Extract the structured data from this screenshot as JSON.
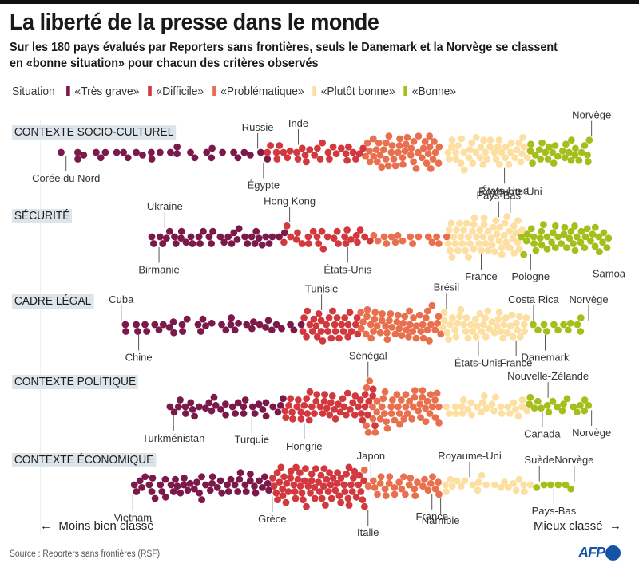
{
  "header": {
    "title": "La liberté de la presse dans le monde",
    "subtitle_line1": "Sur les 180 pays évalués par Reporters sans frontières, seuls le Danemark et la Norvège se classent",
    "subtitle_line2": "en «bonne situation» pour chacun des critères observés"
  },
  "legend": {
    "title": "Situation",
    "items": [
      {
        "key": "tres_grave",
        "label": "«Très grave»",
        "color": "#7b1a4a"
      },
      {
        "key": "difficile",
        "label": "«Difficile»",
        "color": "#d2393f"
      },
      {
        "key": "problematique",
        "label": "«Problématique»",
        "color": "#e8704e"
      },
      {
        "key": "plutot_bonne",
        "label": "«Plutôt bonne»",
        "color": "#fcdfa1"
      },
      {
        "key": "bonne",
        "label": "«Bonne»",
        "color": "#a4bf1c"
      }
    ]
  },
  "axis": {
    "left_label": "Moins bien classé",
    "right_label": "Mieux classé",
    "left_arrow": "←",
    "right_arrow": "→"
  },
  "footer": {
    "source": "Source : Reporters sans frontières (RSF)",
    "logo_text": "AFP"
  },
  "chart_data": {
    "type": "scatter",
    "subtype": "beeswarm",
    "title": "La liberté de la presse dans le monde",
    "x_description": "Classement par critère (score relatif, 0 = moins bien classé, 100 = mieux classé)",
    "xlim": [
      0,
      100
    ],
    "total_countries": 180,
    "categories": [
      "tres_grave",
      "difficile",
      "problematique",
      "plutot_bonne",
      "bonne"
    ],
    "rows": [
      {
        "label": "CONTEXTE SOCIO-CULTUREL",
        "groups": [
          {
            "category": "tres_grave",
            "count": 30,
            "range": [
              4,
              39
            ]
          },
          {
            "category": "difficile",
            "count": 30,
            "range": [
              39,
              56
            ]
          },
          {
            "category": "problematique",
            "count": 48,
            "range": [
              56,
              69
            ]
          },
          {
            "category": "plutot_bonne",
            "count": 44,
            "range": [
              70,
              84
            ]
          },
          {
            "category": "bonne",
            "count": 28,
            "range": [
              84,
              95
            ]
          }
        ],
        "annotations": [
          {
            "country": "Corée du Nord",
            "x": 4.5,
            "side": "below",
            "category": "tres_grave"
          },
          {
            "country": "Russie",
            "x": 37.5,
            "side": "above",
            "category": "tres_grave"
          },
          {
            "country": "Égypte",
            "x": 38.5,
            "side": "below",
            "category": "tres_grave"
          },
          {
            "country": "Inde",
            "x": 44.5,
            "side": "above",
            "category": "difficile"
          },
          {
            "country": "États-Unis",
            "x": 80,
            "side": "below",
            "category": "plutot_bonne"
          },
          {
            "country": "Norvège",
            "x": 95,
            "side": "above",
            "category": "bonne"
          }
        ]
      },
      {
        "label": "SÉCURITÉ",
        "groups": [
          {
            "category": "tres_grave",
            "count": 38,
            "range": [
              19,
              42
            ]
          },
          {
            "category": "difficile",
            "count": 26,
            "range": [
              42,
              57
            ]
          },
          {
            "category": "problematique",
            "count": 16,
            "range": [
              57,
              70
            ]
          },
          {
            "category": "plutot_bonne",
            "count": 56,
            "range": [
              70,
              83
            ]
          },
          {
            "category": "bonne",
            "count": 44,
            "range": [
              83,
              98
            ]
          }
        ],
        "annotations": [
          {
            "country": "Ukraine",
            "x": 21.5,
            "side": "above",
            "category": "tres_grave"
          },
          {
            "country": "Birmanie",
            "x": 20.5,
            "side": "below",
            "category": "tres_grave"
          },
          {
            "country": "Hong Kong",
            "x": 43,
            "side": "above",
            "category": "difficile"
          },
          {
            "country": "États-Unis",
            "x": 53,
            "side": "below",
            "category": "difficile"
          },
          {
            "country": "Pays-Bas",
            "x": 79,
            "side": "above",
            "category": "plutot_bonne"
          },
          {
            "country": "France",
            "x": 76,
            "side": "below",
            "category": "plutot_bonne"
          },
          {
            "country": "Royaume-Uni",
            "x": 81,
            "side": "above",
            "category": "plutot_bonne"
          },
          {
            "country": "Pologne",
            "x": 84.5,
            "side": "below",
            "category": "bonne"
          },
          {
            "country": "Samoa",
            "x": 98,
            "side": "below",
            "category": "bonne"
          }
        ]
      },
      {
        "label": "CADRE LÉGAL",
        "groups": [
          {
            "category": "tres_grave",
            "count": 38,
            "range": [
              14,
              45
            ]
          },
          {
            "category": "difficile",
            "count": 32,
            "range": [
              45,
              55
            ]
          },
          {
            "category": "problematique",
            "count": 50,
            "range": [
              55,
              69
            ]
          },
          {
            "category": "plutot_bonne",
            "count": 48,
            "range": [
              69,
              84
            ]
          },
          {
            "category": "bonne",
            "count": 12,
            "range": [
              85,
              94
            ]
          }
        ],
        "annotations": [
          {
            "country": "Cuba",
            "x": 14,
            "side": "above",
            "category": "tres_grave"
          },
          {
            "country": "Chine",
            "x": 17,
            "side": "below",
            "category": "tres_grave"
          },
          {
            "country": "Tunisie",
            "x": 48.5,
            "side": "above",
            "category": "difficile"
          },
          {
            "country": "Brésil",
            "x": 70,
            "side": "above",
            "category": "plutot_bonne"
          },
          {
            "country": "États-Unis",
            "x": 75.5,
            "side": "below",
            "category": "plutot_bonne"
          },
          {
            "country": "France",
            "x": 82,
            "side": "below",
            "category": "plutot_bonne"
          },
          {
            "country": "Costa Rica",
            "x": 85,
            "side": "above",
            "category": "bonne"
          },
          {
            "country": "Danemark",
            "x": 87,
            "side": "below",
            "category": "bonne"
          },
          {
            "country": "Norvège",
            "x": 94.5,
            "side": "above",
            "category": "bonne"
          }
        ]
      },
      {
        "label": "CONTEXTE POLITIQUE",
        "groups": [
          {
            "category": "tres_grave",
            "count": 34,
            "range": [
              22,
              42
            ]
          },
          {
            "category": "difficile",
            "count": 50,
            "range": [
              42,
              58
            ]
          },
          {
            "category": "problematique",
            "count": 50,
            "range": [
              56,
              69
            ]
          },
          {
            "category": "plutot_bonne",
            "count": 28,
            "range": [
              70,
              84
            ]
          },
          {
            "category": "bonne",
            "count": 18,
            "range": [
              84,
              95
            ]
          }
        ],
        "annotations": [
          {
            "country": "Turkménistan",
            "x": 23,
            "side": "below",
            "category": "tres_grave"
          },
          {
            "country": "Turquie",
            "x": 36.5,
            "side": "below",
            "category": "tres_grave"
          },
          {
            "country": "Hongrie",
            "x": 45.5,
            "side": "below",
            "category": "difficile"
          },
          {
            "country": "Sénégal",
            "x": 56.5,
            "side": "above",
            "category": "problematique"
          },
          {
            "country": "Nouvelle-Zélande",
            "x": 87.5,
            "side": "above",
            "category": "bonne"
          },
          {
            "country": "Canada",
            "x": 86.5,
            "side": "below",
            "category": "bonne"
          },
          {
            "country": "Norvège",
            "x": 95,
            "side": "below",
            "category": "bonne"
          }
        ]
      },
      {
        "label": "CONTEXTE ÉCONOMIQUE",
        "groups": [
          {
            "category": "tres_grave",
            "count": 52,
            "range": [
              16,
              40
            ]
          },
          {
            "category": "difficile",
            "count": 70,
            "range": [
              40,
              56
            ]
          },
          {
            "category": "problematique",
            "count": 30,
            "range": [
              56,
              69
            ]
          },
          {
            "category": "plutot_bonne",
            "count": 22,
            "range": [
              69,
              85
            ]
          },
          {
            "category": "bonne",
            "count": 6,
            "range": [
              85,
              92
            ]
          }
        ],
        "annotations": [
          {
            "country": "Vietnam",
            "x": 16,
            "side": "below",
            "category": "tres_grave"
          },
          {
            "country": "Grèce",
            "x": 40,
            "side": "below",
            "category": "difficile"
          },
          {
            "country": "Japon",
            "x": 57,
            "side": "above",
            "category": "problematique"
          },
          {
            "country": "Italie",
            "x": 56.5,
            "side": "below",
            "category": "problematique"
          },
          {
            "country": "France",
            "x": 67.5,
            "side": "below",
            "category": "problematique"
          },
          {
            "country": "Namibie",
            "x": 69,
            "side": "below",
            "category": "plutot_bonne"
          },
          {
            "country": "Royaume-Uni",
            "x": 74,
            "side": "above",
            "category": "plutot_bonne"
          },
          {
            "country": "Suède",
            "x": 86,
            "side": "above",
            "category": "bonne"
          },
          {
            "country": "Pays-Bas",
            "x": 88.5,
            "side": "below",
            "category": "bonne"
          },
          {
            "country": "Norvège",
            "x": 92,
            "side": "above",
            "category": "bonne"
          }
        ]
      }
    ]
  }
}
